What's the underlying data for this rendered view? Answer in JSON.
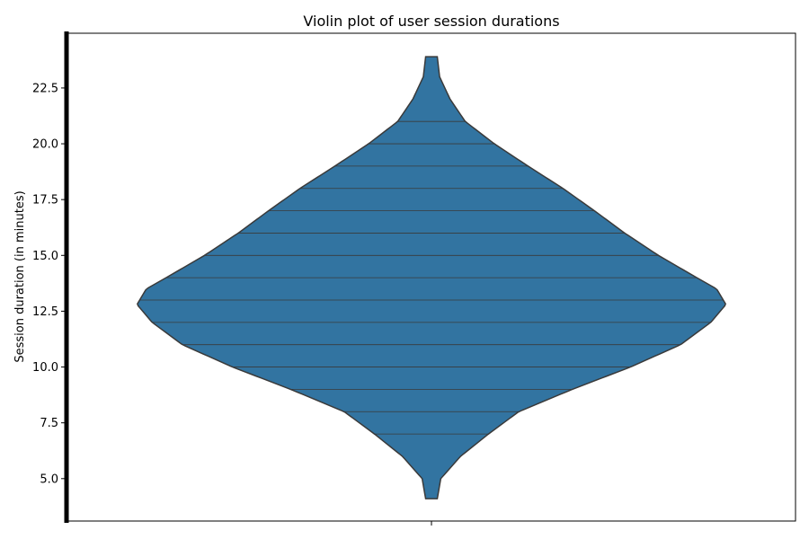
{
  "chart_data": {
    "type": "violin",
    "title": "Violin plot of user session durations",
    "xlabel": "",
    "ylabel": "Session duration (in minutes)",
    "ylim": [
      3.2,
      25.0
    ],
    "yticks": [
      5.0,
      7.5,
      10.0,
      12.5,
      15.0,
      17.5,
      20.0,
      22.5
    ],
    "ytick_labels": [
      "5.0",
      "7.5",
      "10.0",
      "12.5",
      "15.0",
      "17.5",
      "20.0",
      "22.5"
    ],
    "grid": false,
    "legend": "none",
    "color": "#3274a1",
    "edge_color": "#3a3a3a",
    "inner": "stick",
    "data_min": 4.1,
    "data_max": 23.9,
    "observations": [
      7,
      8,
      9,
      10,
      11,
      12,
      13,
      14,
      15,
      16,
      17,
      18,
      19,
      20,
      21
    ],
    "density_profile": [
      {
        "y": 4.1,
        "w": 0.05
      },
      {
        "y": 5.0,
        "w": 0.08
      },
      {
        "y": 6.0,
        "w": 0.25
      },
      {
        "y": 7.0,
        "w": 0.49
      },
      {
        "y": 8.0,
        "w": 0.75
      },
      {
        "y": 9.0,
        "w": 1.21
      },
      {
        "y": 10.0,
        "w": 1.71
      },
      {
        "y": 11.0,
        "w": 2.14
      },
      {
        "y": 12.0,
        "w": 2.4
      },
      {
        "y": 12.8,
        "w": 2.53
      },
      {
        "y": 13.5,
        "w": 2.45
      },
      {
        "y": 14.0,
        "w": 2.28
      },
      {
        "y": 15.0,
        "w": 1.95
      },
      {
        "y": 16.0,
        "w": 1.66
      },
      {
        "y": 17.0,
        "w": 1.4
      },
      {
        "y": 18.0,
        "w": 1.13
      },
      {
        "y": 19.0,
        "w": 0.83
      },
      {
        "y": 20.0,
        "w": 0.54
      },
      {
        "y": 21.0,
        "w": 0.29
      },
      {
        "y": 22.0,
        "w": 0.16
      },
      {
        "y": 23.0,
        "w": 0.07
      },
      {
        "y": 23.9,
        "w": 0.05
      }
    ]
  }
}
